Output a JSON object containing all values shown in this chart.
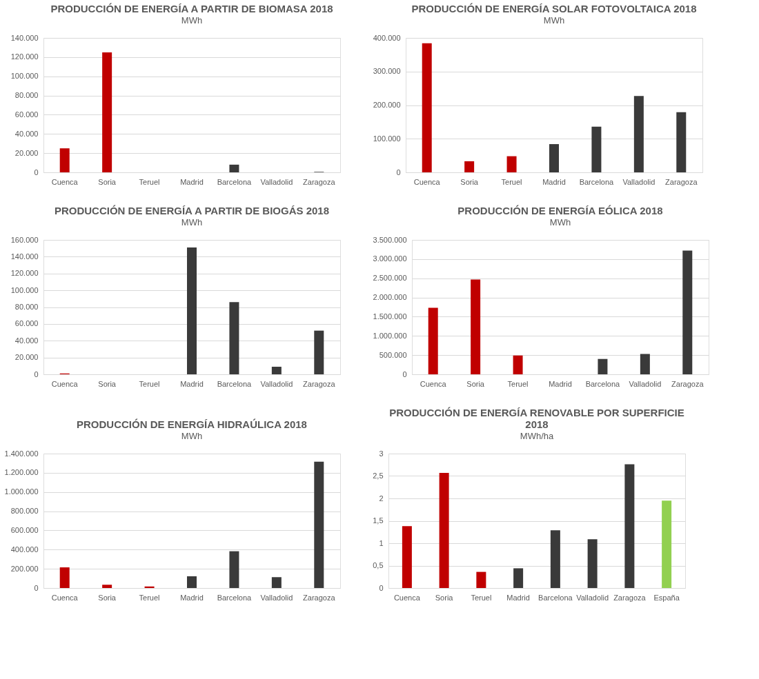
{
  "chart_data": [
    {
      "type": "bar",
      "title": "PRODUCCIÓN DE ENERGÍA A PARTIR DE BIOMASA 2018",
      "subtitle": "MWh",
      "categories": [
        "Cuenca",
        "Soria",
        "Teruel",
        "Madrid",
        "Barcelona",
        "Valladolid",
        "Zaragoza"
      ],
      "values": [
        25000,
        125000,
        0,
        0,
        8000,
        0,
        500
      ],
      "colors": [
        "#c00000",
        "#c00000",
        "#c00000",
        "#3a3a3a",
        "#3a3a3a",
        "#3a3a3a",
        "#3a3a3a"
      ],
      "ylim": [
        0,
        140000
      ],
      "yticks": [
        0,
        {
          "value": 20000,
          "label": "20.000"
        },
        {
          "value": 40000,
          "label": "40.000"
        },
        {
          "value": 60000,
          "label": "60.000"
        },
        {
          "value": 80000,
          "label": "80.000"
        },
        {
          "value": 100000,
          "label": "100.000"
        },
        {
          "value": 120000,
          "label": "120.000"
        },
        {
          "value": 140000,
          "label": "140.000"
        }
      ],
      "grid": "y"
    },
    {
      "type": "bar",
      "title": "PRODUCCIÓN DE ENERGÍA SOLAR FOTOVOLTAICA 2018",
      "subtitle": "MWh",
      "categories": [
        "Cuenca",
        "Soria",
        "Teruel",
        "Madrid",
        "Barcelona",
        "Valladolid",
        "Zaragoza"
      ],
      "values": [
        384000,
        33000,
        48000,
        84000,
        136000,
        227000,
        179000
      ],
      "colors": [
        "#c00000",
        "#c00000",
        "#c00000",
        "#3a3a3a",
        "#3a3a3a",
        "#3a3a3a",
        "#3a3a3a"
      ],
      "ylim": [
        0,
        400000
      ],
      "yticks": [
        0,
        {
          "value": 100000,
          "label": "100.000"
        },
        {
          "value": 200000,
          "label": "200.000"
        },
        {
          "value": 300000,
          "label": "300.000"
        },
        {
          "value": 400000,
          "label": "400.000"
        }
      ],
      "grid": "y"
    },
    {
      "type": "bar",
      "title": "PRODUCCIÓN DE ENERGÍA A PARTIR DE BIOGÁS 2018",
      "subtitle": "MWh",
      "categories": [
        "Cuenca",
        "Soria",
        "Teruel",
        "Madrid",
        "Barcelona",
        "Valladolid",
        "Zaragoza"
      ],
      "values": [
        1000,
        0,
        0,
        151000,
        86000,
        9000,
        52000
      ],
      "colors": [
        "#c00000",
        "#c00000",
        "#c00000",
        "#3a3a3a",
        "#3a3a3a",
        "#3a3a3a",
        "#3a3a3a"
      ],
      "ylim": [
        0,
        160000
      ],
      "yticks": [
        0,
        {
          "value": 20000,
          "label": "20.000"
        },
        {
          "value": 40000,
          "label": "40.000"
        },
        {
          "value": 60000,
          "label": "60.000"
        },
        {
          "value": 80000,
          "label": "80.000"
        },
        {
          "value": 100000,
          "label": "100.000"
        },
        {
          "value": 120000,
          "label": "120.000"
        },
        {
          "value": 140000,
          "label": "140.000"
        },
        {
          "value": 160000,
          "label": "160.000"
        }
      ],
      "grid": "y"
    },
    {
      "type": "bar",
      "title": "PRODUCCIÓN DE ENERGÍA EÓLICA 2018",
      "subtitle": "MWh",
      "categories": [
        "Cuenca",
        "Soria",
        "Teruel",
        "Madrid",
        "Barcelona",
        "Valladolid",
        "Zaragoza"
      ],
      "values": [
        1730000,
        2470000,
        490000,
        0,
        400000,
        530000,
        3220000
      ],
      "colors": [
        "#c00000",
        "#c00000",
        "#c00000",
        "#3a3a3a",
        "#3a3a3a",
        "#3a3a3a",
        "#3a3a3a"
      ],
      "ylim": [
        0,
        3500000
      ],
      "yticks": [
        0,
        {
          "value": 500000,
          "label": "500.000"
        },
        {
          "value": 1000000,
          "label": "1.000.000"
        },
        {
          "value": 1500000,
          "label": "1.500.000"
        },
        {
          "value": 2000000,
          "label": "2.000.000"
        },
        {
          "value": 2500000,
          "label": "2.500.000"
        },
        {
          "value": 3000000,
          "label": "3.000.000"
        },
        {
          "value": 3500000,
          "label": "3.500.000"
        }
      ],
      "grid": "y"
    },
    {
      "type": "bar",
      "title": "PRODUCCIÓN DE ENERGÍA HIDRAÚLICA 2018",
      "subtitle": "MWh",
      "categories": [
        "Cuenca",
        "Soria",
        "Teruel",
        "Madrid",
        "Barcelona",
        "Valladolid",
        "Zaragoza"
      ],
      "values": [
        215000,
        34000,
        16000,
        122000,
        383000,
        113000,
        1316000
      ],
      "colors": [
        "#c00000",
        "#c00000",
        "#c00000",
        "#3a3a3a",
        "#3a3a3a",
        "#3a3a3a",
        "#3a3a3a"
      ],
      "ylim": [
        0,
        1400000
      ],
      "yticks": [
        0,
        {
          "value": 200000,
          "label": "200.000"
        },
        {
          "value": 400000,
          "label": "400.000"
        },
        {
          "value": 600000,
          "label": "600.000"
        },
        {
          "value": 800000,
          "label": "800.000"
        },
        {
          "value": 1000000,
          "label": "1.000.000"
        },
        {
          "value": 1200000,
          "label": "1.200.000"
        },
        {
          "value": 1400000,
          "label": "1.400.000"
        }
      ],
      "grid": "y"
    },
    {
      "type": "bar",
      "title": "PRODUCCIÓN DE ENERGÍA RENOVABLE POR SUPERFICIE 2018",
      "subtitle": "MWh/ha",
      "categories": [
        "Cuenca",
        "Soria",
        "Teruel",
        "Madrid",
        "Barcelona",
        "Valladolid",
        "Zaragoza",
        "España"
      ],
      "values": [
        1.38,
        2.57,
        0.36,
        0.44,
        1.29,
        1.09,
        2.76,
        1.95
      ],
      "colors": [
        "#c00000",
        "#c00000",
        "#c00000",
        "#3a3a3a",
        "#3a3a3a",
        "#3a3a3a",
        "#3a3a3a",
        "#92d050"
      ],
      "ylim": [
        0,
        3
      ],
      "yticks": [
        0,
        {
          "value": 0.5,
          "label": "0,5"
        },
        1,
        {
          "value": 1.5,
          "label": "1,5"
        },
        2,
        {
          "value": 2.5,
          "label": "2,5"
        },
        3
      ],
      "grid": "y"
    }
  ]
}
